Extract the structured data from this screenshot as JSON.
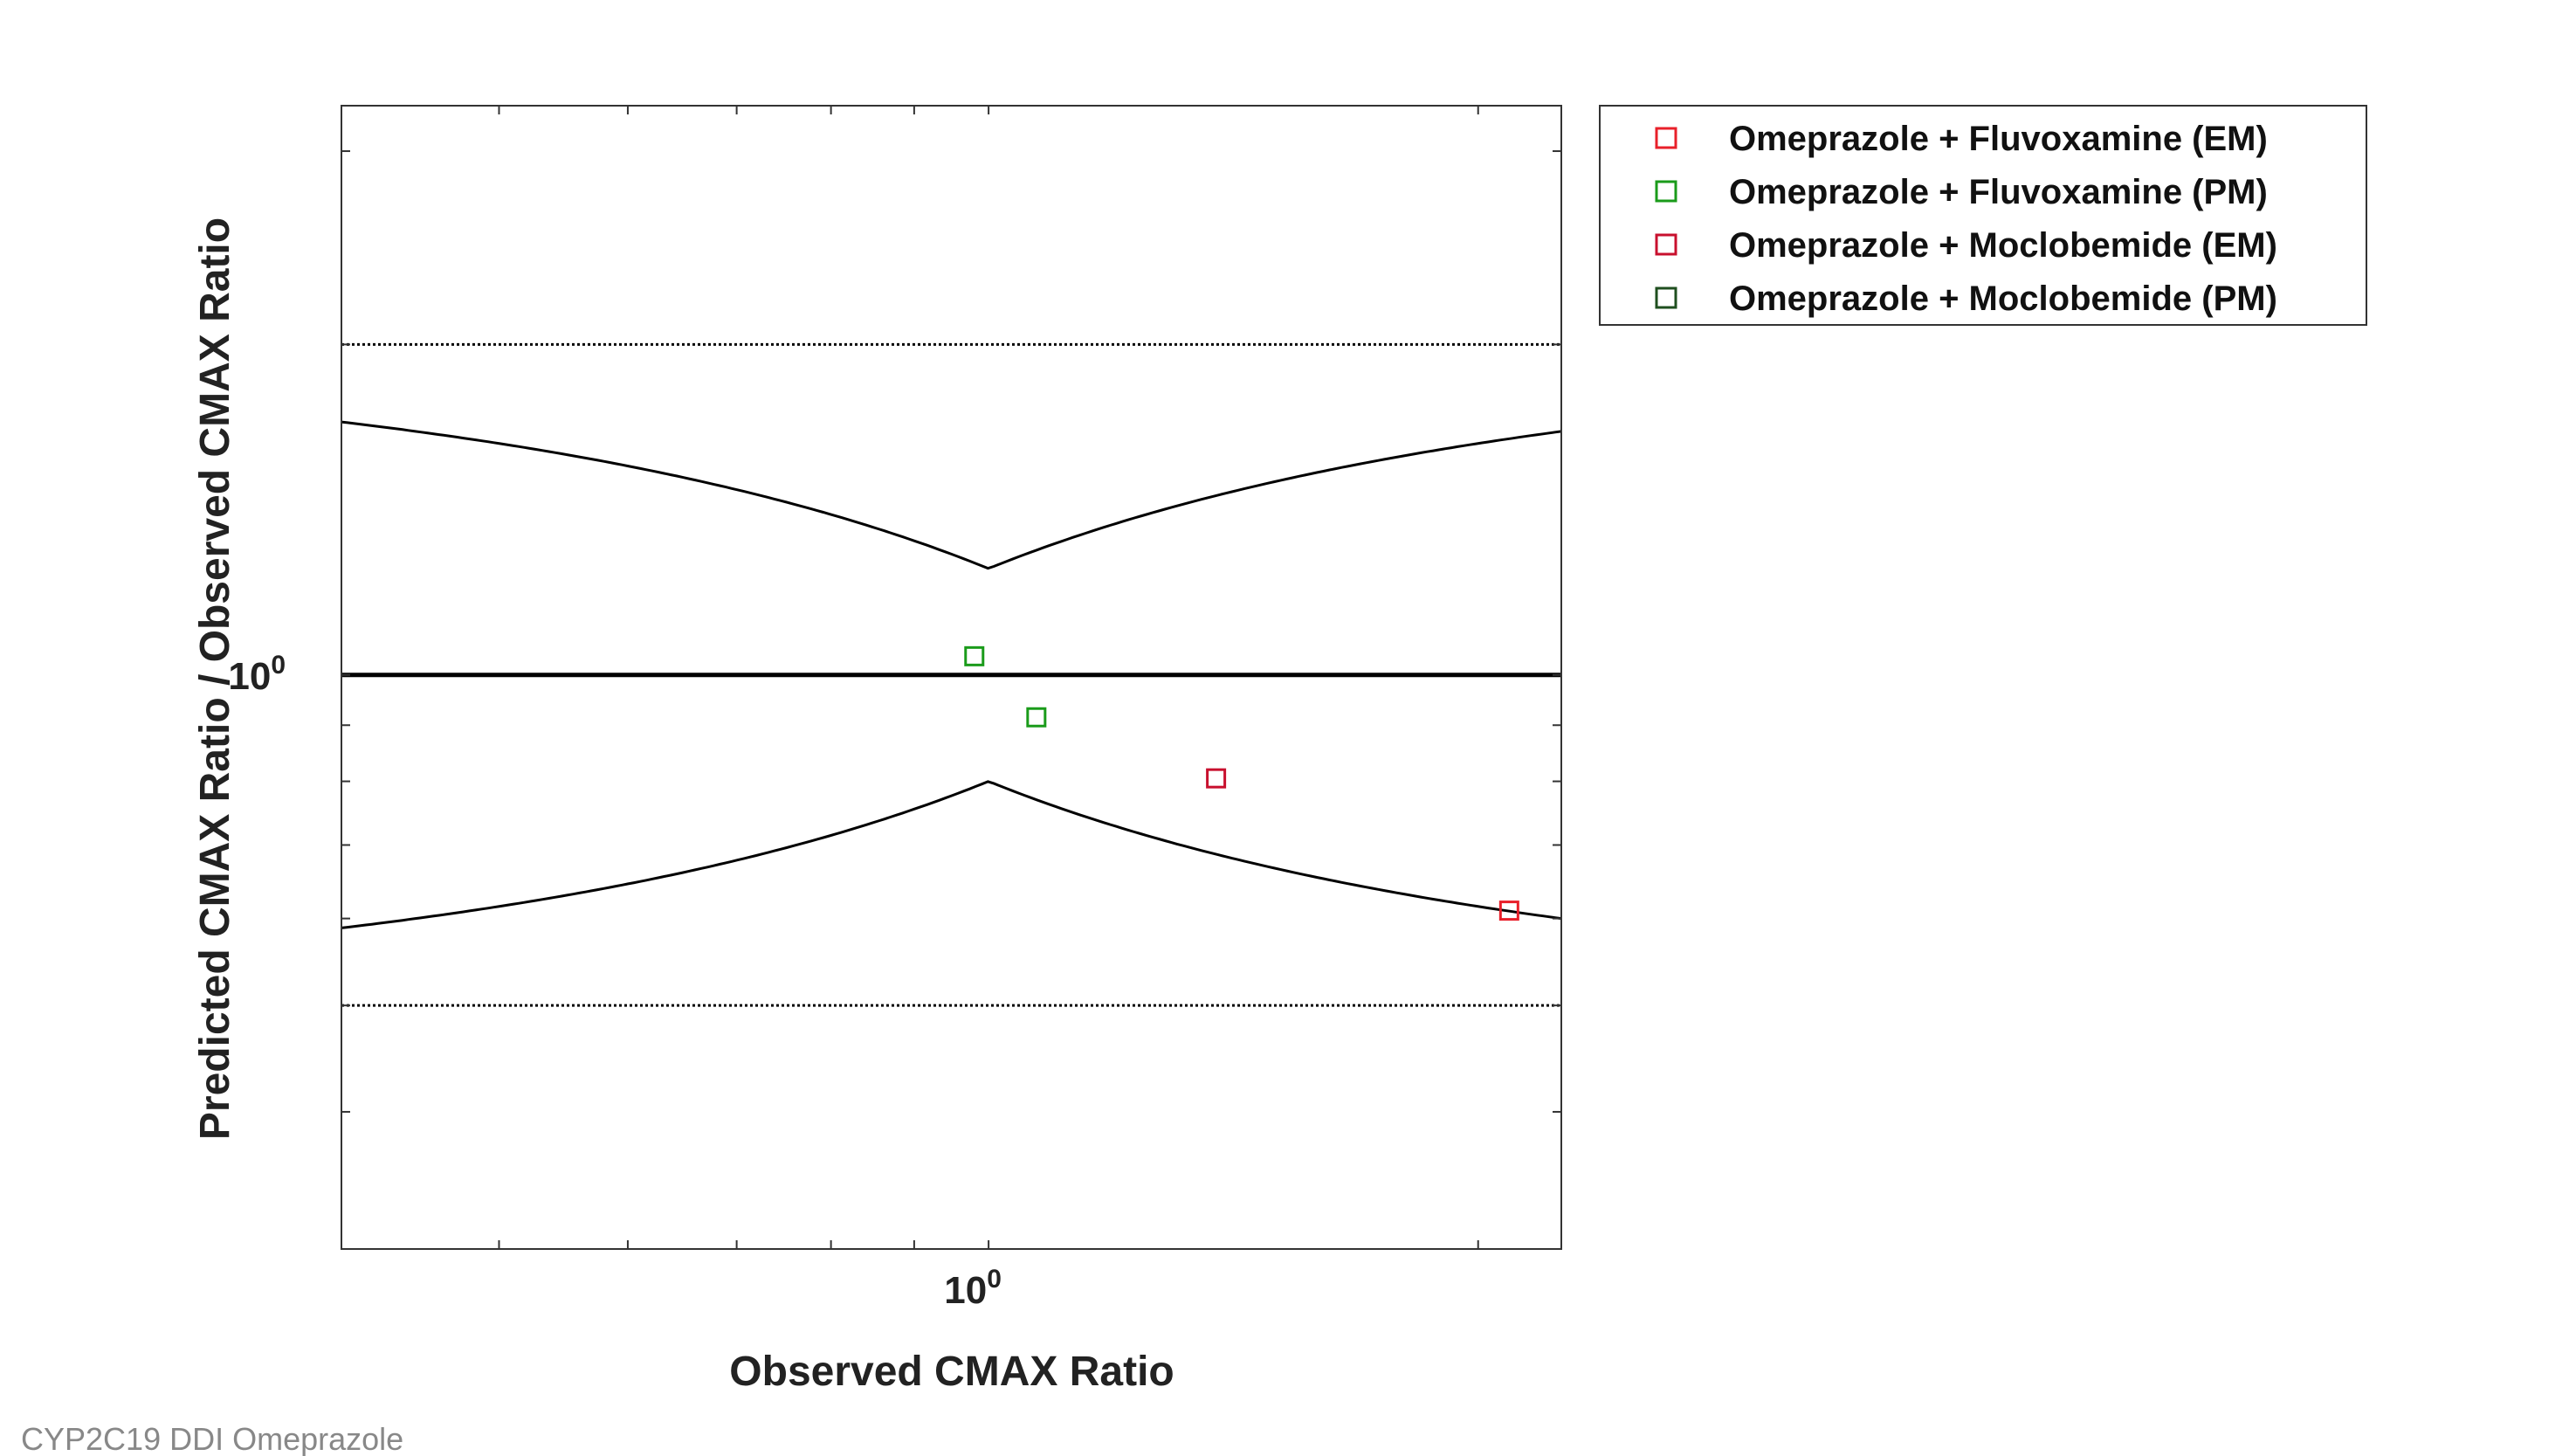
{
  "footer": "CYP2C19 DDI Omeprazole",
  "chart_data": {
    "type": "scatter",
    "xlabel": "Observed CMAX Ratio",
    "ylabel": "Predicted CMAX Ratio / Observed CMAX Ratio",
    "x_scale": "log",
    "y_scale": "log",
    "xlim": [
      0.4,
      2.25
    ],
    "ylim": [
      0.3,
      3.3
    ],
    "x_ticks": [
      {
        "value": 1,
        "label": "10",
        "exp": "0"
      }
    ],
    "y_ticks": [
      {
        "value": 1,
        "label": "10",
        "exp": "0"
      }
    ],
    "grid": false,
    "legend_position": "outside-right",
    "reference_lines": [
      {
        "name": "identity",
        "type": "horizontal",
        "y": 1,
        "style": "solid",
        "color": "#000000"
      },
      {
        "name": "upper-2fold",
        "type": "horizontal",
        "y": 2,
        "style": "dotted",
        "color": "#000000"
      },
      {
        "name": "lower-2fold",
        "type": "horizontal",
        "y": 0.5,
        "style": "dotted",
        "color": "#000000"
      },
      {
        "name": "guest-upper",
        "type": "guest",
        "branch": "upper",
        "delta": 1.25,
        "style": "solid",
        "color": "#000000"
      },
      {
        "name": "guest-lower",
        "type": "guest",
        "branch": "lower",
        "delta": 1.25,
        "style": "solid",
        "color": "#000000"
      }
    ],
    "series": [
      {
        "name": "Omeprazole + Fluvoxamine (EM)",
        "color": "#e8202a",
        "marker": "square",
        "points": [
          {
            "x": 2.09,
            "y": 0.61
          }
        ]
      },
      {
        "name": "Omeprazole + Fluvoxamine (PM)",
        "color": "#1a9b1a",
        "marker": "square",
        "points": [
          {
            "x": 0.98,
            "y": 1.04
          },
          {
            "x": 1.07,
            "y": 0.915
          }
        ]
      },
      {
        "name": "Omeprazole + Moclobemide (EM)",
        "color": "#c8102e",
        "marker": "square",
        "points": [
          {
            "x": 1.38,
            "y": 0.805
          }
        ]
      },
      {
        "name": "Omeprazole + Moclobemide (PM)",
        "color": "#1f4f1f",
        "marker": "square",
        "points": []
      }
    ]
  }
}
